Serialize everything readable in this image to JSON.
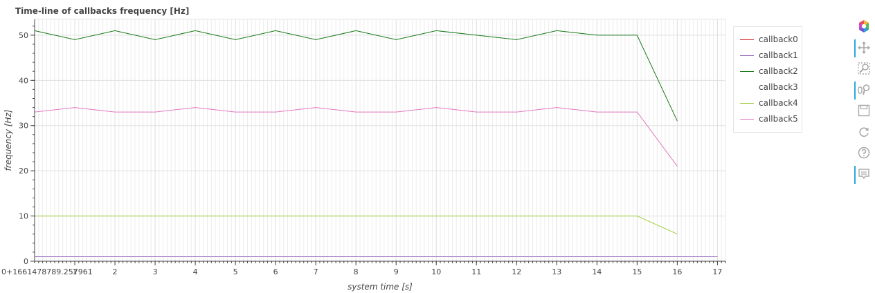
{
  "chart_data": {
    "type": "line",
    "title": "Time-line of callbacks frequency [Hz]",
    "xlabel": "system time [s]",
    "ylabel": "frequency [Hz]",
    "x_offset_label": "0+1661478789.257961",
    "xlim": [
      0,
      17.2
    ],
    "ylim": [
      0,
      53.5
    ],
    "x_major_ticks": [
      1,
      2,
      3,
      4,
      5,
      6,
      7,
      8,
      9,
      10,
      11,
      12,
      13,
      14,
      15,
      16,
      17
    ],
    "y_ticks": [
      0,
      10,
      20,
      30,
      40,
      50
    ],
    "grid": true,
    "legend_position": "top-right, outside plot",
    "series": [
      {
        "name": "callback0",
        "color": "#d62728",
        "x": [
          0,
          1,
          2,
          3,
          4,
          5,
          6,
          7,
          8,
          9,
          10,
          11,
          12,
          13,
          14,
          15,
          16,
          17
        ],
        "y": [
          1,
          1,
          1,
          1,
          1,
          1,
          1,
          1,
          1,
          1,
          1,
          1,
          1,
          1,
          1,
          1,
          1,
          1
        ]
      },
      {
        "name": "callback1",
        "color": "#9467bd",
        "x": [
          0,
          1,
          2,
          3,
          4,
          5,
          6,
          7,
          8,
          9,
          10,
          11,
          12,
          13,
          14,
          15,
          16,
          17
        ],
        "y": [
          1,
          1,
          1,
          1,
          1,
          1,
          1,
          1,
          1,
          1,
          1,
          1,
          1,
          1,
          1,
          1,
          1,
          1
        ]
      },
      {
        "name": "callback2",
        "color": "#1a7a1a",
        "x": [
          0,
          1,
          2,
          3,
          4,
          5,
          6,
          7,
          8,
          9,
          10,
          11,
          12,
          13,
          14,
          15,
          16
        ],
        "y": [
          51,
          49,
          51,
          49,
          51,
          49,
          51,
          49,
          51,
          49,
          51,
          50,
          49,
          51,
          50,
          50,
          31
        ]
      },
      {
        "name": "callback3",
        "color": "#ffffff",
        "x": [],
        "y": []
      },
      {
        "name": "callback4",
        "color": "#9acd32",
        "x": [
          0,
          1,
          2,
          3,
          4,
          5,
          6,
          7,
          8,
          9,
          10,
          11,
          12,
          13,
          14,
          15,
          16
        ],
        "y": [
          10,
          10,
          10,
          10,
          10,
          10,
          10,
          10,
          10,
          10,
          10,
          10,
          10,
          10,
          10,
          10,
          6
        ]
      },
      {
        "name": "callback5",
        "color": "#e377c2",
        "x": [
          0,
          1,
          2,
          3,
          4,
          5,
          6,
          7,
          8,
          9,
          10,
          11,
          12,
          13,
          14,
          15,
          16
        ],
        "y": [
          33,
          34,
          33,
          33,
          34,
          33,
          33,
          34,
          33,
          33,
          34,
          33,
          33,
          34,
          33,
          33,
          21
        ]
      }
    ]
  },
  "toolbar": {
    "tools": [
      {
        "name": "bokeh-logo-icon",
        "active": false
      },
      {
        "name": "pan-tool-icon",
        "active": true
      },
      {
        "name": "box-zoom-tool-icon",
        "active": false
      },
      {
        "name": "wheel-zoom-tool-icon",
        "active": true
      },
      {
        "name": "save-tool-icon",
        "active": false
      },
      {
        "name": "reset-tool-icon",
        "active": false
      },
      {
        "name": "help-tool-icon",
        "active": false
      },
      {
        "name": "hover-tool-icon",
        "active": true
      }
    ]
  }
}
